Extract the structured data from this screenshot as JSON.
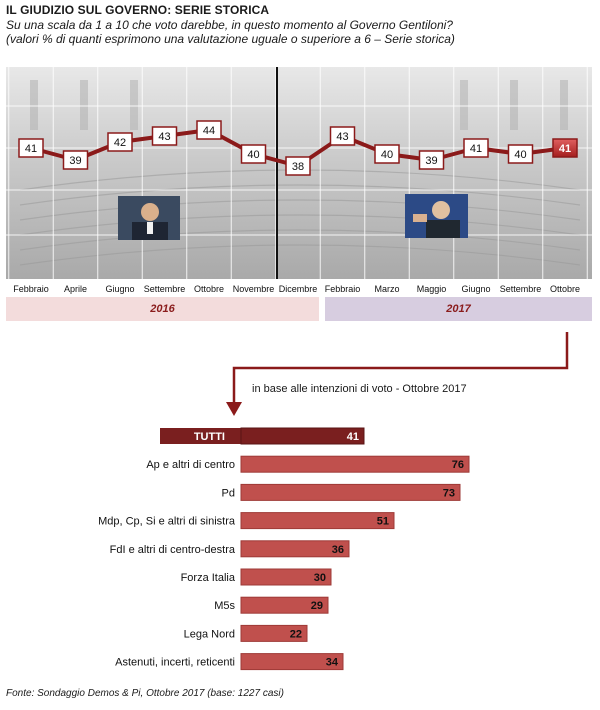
{
  "header": {
    "title": "IL GIUDIZIO SUL GOVERNO: SERIE STORICA",
    "subtitle_line1": "Su una scala da 1 a 10 che voto darebbe, in questo momento al Governo Gentiloni?",
    "subtitle_line2": "(valori % di quanti esprimono una valutazione uguale o superiore a 6 – Serie storica)"
  },
  "chart_data": [
    {
      "type": "line",
      "categories": [
        "Febbraio",
        "Aprile",
        "Giugno",
        "Settembre",
        "Ottobre",
        "Novembre",
        "Dicembre",
        "Febbraio",
        "Marzo",
        "Maggio",
        "Giugno",
        "Settembre",
        "Ottobre"
      ],
      "values": [
        41,
        39,
        42,
        43,
        44,
        40,
        38,
        43,
        40,
        39,
        41,
        40,
        41
      ],
      "years": [
        {
          "label": "2016",
          "start": 0,
          "end": 6
        },
        {
          "label": "2017",
          "start": 7,
          "end": 12
        }
      ],
      "colors": {
        "line": "#8b1a1a",
        "highlight": "#b22222"
      }
    },
    {
      "type": "bar",
      "caption": "in base alle intenzioni di voto  - Ottobre 2017",
      "categories": [
        "TUTTI",
        "Ap e altri di centro",
        "Pd",
        "Mdp, Cp, Si e altri di sinistra",
        "FdI e altri di centro-destra",
        "Forza Italia",
        "M5s",
        "Lega Nord",
        "Astenuti, incerti, reticenti"
      ],
      "values": [
        41,
        76,
        73,
        51,
        36,
        30,
        29,
        22,
        34
      ],
      "colors": {
        "total": "#7a1f1f",
        "bars": "#c0504d"
      }
    }
  ],
  "footer": {
    "source": "Fonte: Sondaggio Demos & Pi, Ottobre 2017 (base: 1227 casi)"
  }
}
